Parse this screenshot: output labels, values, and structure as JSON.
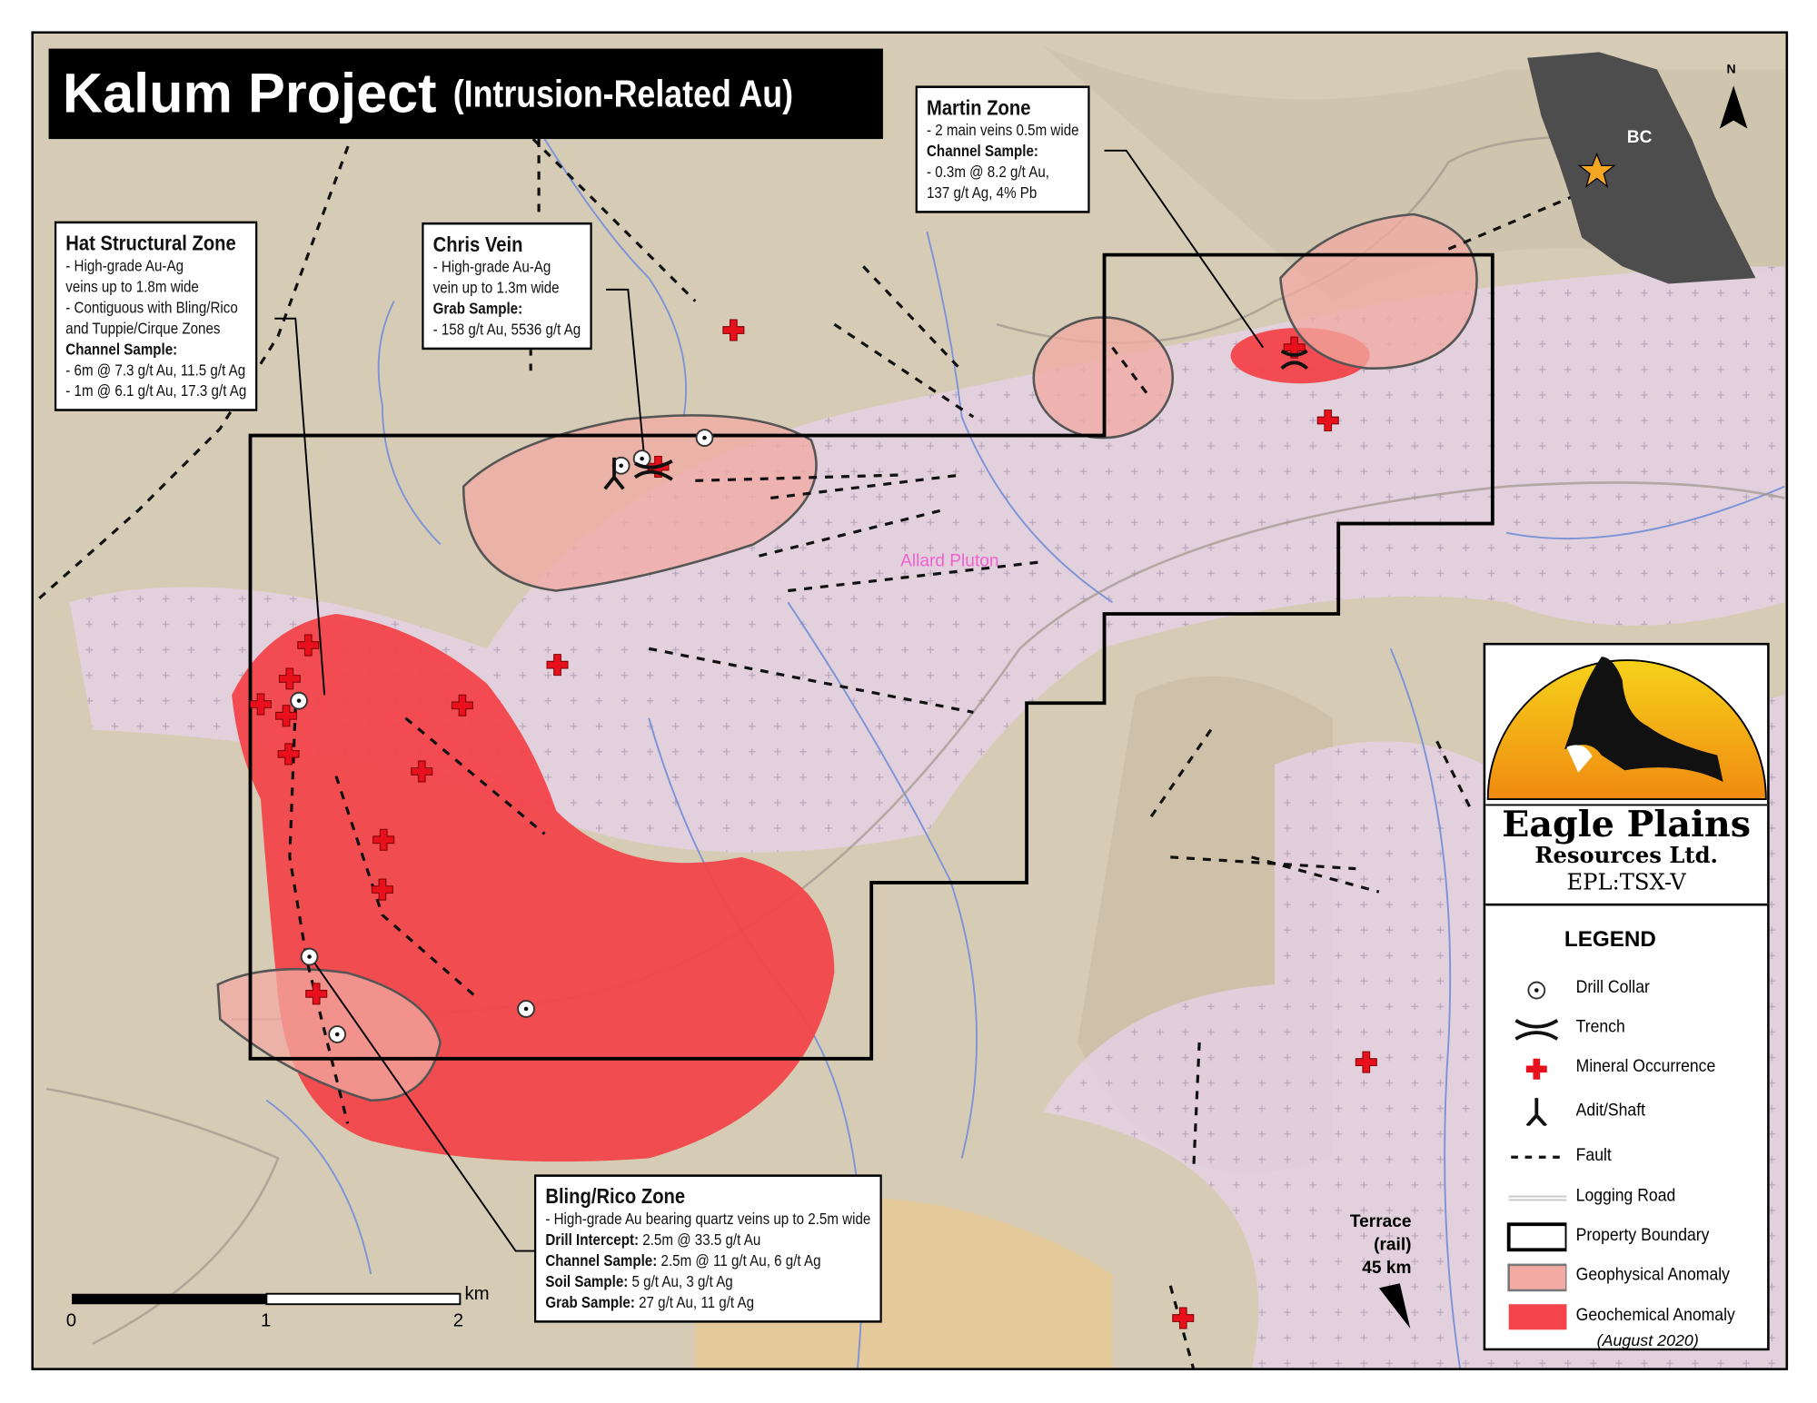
{
  "title": {
    "main": "Kalum Project",
    "sub": "(Intrusion-Related Au)"
  },
  "callouts": {
    "hat": {
      "heading": "Hat Structural Zone",
      "lines": [
        "- High-grade Au-Ag",
        "veins up to 1.8m wide",
        "- Contiguous with Bling/Rico",
        "and Tuppie/Cirque Zones"
      ],
      "sample_label": "Channel Sample:",
      "samples": [
        "- 6m @ 7.3 g/t Au, 11.5 g/t Ag",
        "- 1m @ 6.1 g/t Au, 17.3 g/t Ag"
      ]
    },
    "chris": {
      "heading": "Chris Vein",
      "lines": [
        "- High-grade Au-Ag",
        "vein up to 1.3m wide"
      ],
      "sample_label": "Grab Sample:",
      "samples": [
        "- 158 g/t Au, 5536 g/t Ag"
      ]
    },
    "martin": {
      "heading": "Martin Zone",
      "lines": [
        "- 2 main veins 0.5m wide"
      ],
      "sample_label": "Channel Sample:",
      "samples": [
        "- 0.3m @ 8.2 g/t Au,",
        "137 g/t Ag, 4% Pb"
      ]
    },
    "bling": {
      "heading": "Bling/Rico Zone",
      "line": "- High-grade Au bearing quartz veins up to 2.5m wide",
      "rows": [
        {
          "label": "Drill Intercept:",
          "value": "2.5m @ 33.5 g/t Au"
        },
        {
          "label": "Channel Sample:",
          "value": "2.5m @ 11 g/t Au, 6 g/t Ag"
        },
        {
          "label": "Soil Sample:",
          "value": "5 g/t Au, 3 g/t Ag"
        },
        {
          "label": "Grab Sample:",
          "value": "27 g/t Au, 11 g/t Ag"
        }
      ]
    }
  },
  "map_labels": {
    "pluton": "Allard Pluton",
    "terrace": [
      "Terrace",
      "(rail)",
      "45 km"
    ],
    "north": "N",
    "bc": "BC"
  },
  "scale_bar": {
    "ticks": [
      "0",
      "1",
      "2"
    ],
    "unit": "km"
  },
  "logo": {
    "company": "Eagle Plains",
    "company2": "Resources Ltd.",
    "ticker": "EPL:TSX-V"
  },
  "legend": {
    "title": "LEGEND",
    "items": [
      "Drill Collar",
      "Trench",
      "Mineral Occurrence",
      "Adit/Shaft",
      "Fault",
      "Logging Road",
      "Property Boundary",
      "Geophysical Anomaly",
      "Geochemical Anomaly"
    ],
    "date": "(August 2020)"
  },
  "colors": {
    "terrain": "#d8cdb8",
    "pluton": "#e6d3e4",
    "geophysical": "#f2aaa2",
    "geochemical": "#f2444a",
    "occurrence": "#e8101c",
    "river": "#7c93d8"
  }
}
